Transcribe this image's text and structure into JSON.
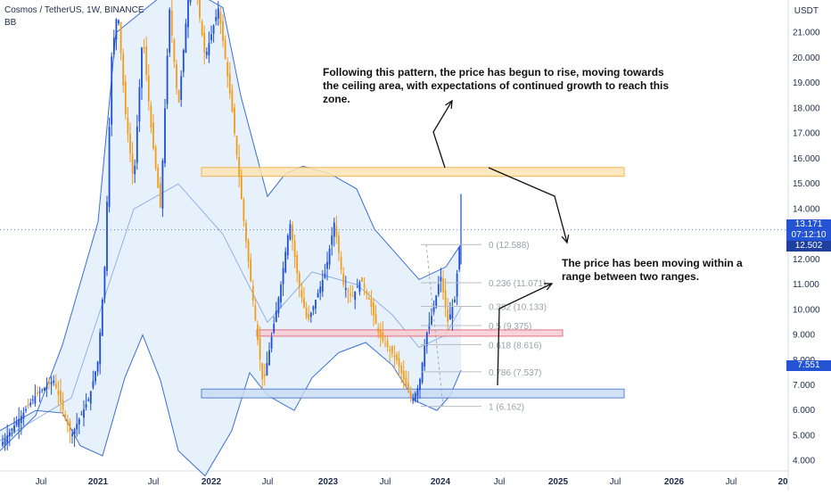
{
  "header": {
    "symbol": "Cosmos / TetherUS, 1W, BINANCE",
    "indicator": "BB",
    "currency": "USDT"
  },
  "price_tags": {
    "current": "13.171",
    "countdown": "07:12:10",
    "prev": "12.502",
    "fib_low": "7.551"
  },
  "annotations": {
    "top": "Following this pattern, the price has begun to rise, moving towards the ceiling area, with expectations of continued growth to reach this zone.",
    "mid": "The price has been moving within a range between two ranges."
  },
  "colors": {
    "up": "#1f4fd6",
    "down": "#f39c1a",
    "band": "#3b6fd4",
    "band_fill": "#e6f1fb",
    "resistance_zone": "#fde4b4",
    "support_zone": "#c9dcf5",
    "mid_zone": "#f8cdd3"
  },
  "chart_data": {
    "type": "candlestick",
    "ylim": [
      3.6,
      22.3
    ],
    "y_ticks": [
      "21.000",
      "20.000",
      "19.000",
      "18.000",
      "17.000",
      "16.000",
      "15.000",
      "14.000",
      "13.000",
      "12.000",
      "11.000",
      "10.000",
      "9.000",
      "8.000",
      "7.000",
      "6.000",
      "5.000",
      "4.000"
    ],
    "x_ticks": [
      "Jul",
      "2021",
      "Jul",
      "2022",
      "Jul",
      "2023",
      "Jul",
      "2024",
      "Jul",
      "2025",
      "Jul",
      "2026",
      "Jul",
      "20"
    ],
    "fib_levels": [
      {
        "label": "0 (12.588)",
        "value": 12.588
      },
      {
        "label": "0.236 (11.071)",
        "value": 11.071
      },
      {
        "label": "0.382 (10.133)",
        "value": 10.133
      },
      {
        "label": "0.5 (9.375)",
        "value": 9.375
      },
      {
        "label": "0.618 (8.616)",
        "value": 8.616
      },
      {
        "label": "0.786 (7.537)",
        "value": 7.537
      },
      {
        "label": "1 (6.162)",
        "value": 6.162
      }
    ],
    "zones": [
      {
        "name": "resistance",
        "from": 15.3,
        "to": 15.65
      },
      {
        "name": "support",
        "from": 6.5,
        "to": 6.85
      },
      {
        "name": "mid",
        "from": 8.95,
        "to": 9.2
      }
    ],
    "last_price": 13.171,
    "weekly_high_recent": 14.6
  }
}
